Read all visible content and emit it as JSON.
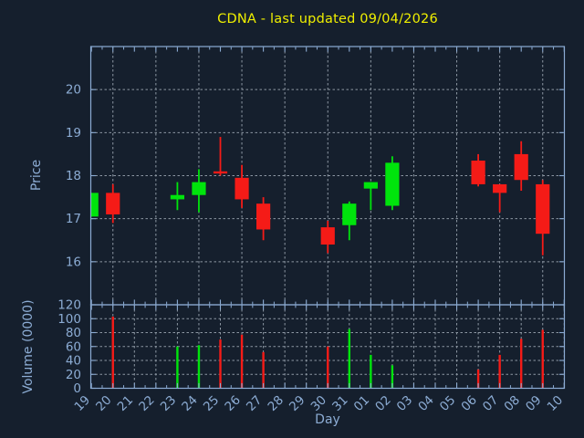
{
  "chart_data": {
    "type": "candlestick",
    "title": "CDNA - last updated 09/04/2026",
    "xlabel": "Day",
    "price_ylabel": "Price",
    "volume_ylabel": "Volume (0000)",
    "x_categories": [
      "19",
      "20",
      "21",
      "22",
      "23",
      "24",
      "25",
      "26",
      "27",
      "28",
      "29",
      "30",
      "31",
      "01",
      "02",
      "03",
      "04",
      "05",
      "06",
      "07",
      "08",
      "09",
      "10"
    ],
    "price_ylim": [
      15,
      21
    ],
    "price_yticks": [
      16,
      17,
      18,
      19,
      20
    ],
    "volume_ylim": [
      0,
      120
    ],
    "volume_yticks": [
      0,
      20,
      40,
      60,
      80,
      100,
      120
    ],
    "grid": {
      "on": true,
      "style": "dashed",
      "price_vertical_every_n_days": 2,
      "volume_vertical_every_n_days": 1
    },
    "legend": "none",
    "candles": [
      {
        "day": "19",
        "open": 17.05,
        "high": 17.6,
        "low": 17.05,
        "close": 17.6,
        "volume": 0,
        "direction": "up"
      },
      {
        "day": "20",
        "open": 17.6,
        "high": 17.8,
        "low": 16.9,
        "close": 17.1,
        "volume": 103,
        "direction": "down"
      },
      {
        "day": "23",
        "open": 17.45,
        "high": 17.85,
        "low": 17.2,
        "close": 17.55,
        "volume": 60,
        "direction": "up"
      },
      {
        "day": "24",
        "open": 17.55,
        "high": 18.15,
        "low": 17.15,
        "close": 17.85,
        "volume": 62,
        "direction": "up"
      },
      {
        "day": "25",
        "open": 18.1,
        "high": 18.9,
        "low": 18.0,
        "close": 18.05,
        "volume": 70,
        "direction": "down"
      },
      {
        "day": "26",
        "open": 17.95,
        "high": 18.25,
        "low": 17.25,
        "close": 17.45,
        "volume": 77,
        "direction": "down"
      },
      {
        "day": "27",
        "open": 17.35,
        "high": 17.5,
        "low": 16.5,
        "close": 16.75,
        "volume": 52,
        "direction": "down"
      },
      {
        "day": "30",
        "open": 16.8,
        "high": 16.95,
        "low": 16.2,
        "close": 16.4,
        "volume": 60,
        "direction": "down"
      },
      {
        "day": "31",
        "open": 16.85,
        "high": 17.4,
        "low": 16.5,
        "close": 17.35,
        "volume": 85,
        "direction": "up"
      },
      {
        "day": "01",
        "open": 17.7,
        "high": 17.85,
        "low": 17.2,
        "close": 17.85,
        "volume": 48,
        "direction": "up"
      },
      {
        "day": "02",
        "open": 17.3,
        "high": 18.45,
        "low": 17.2,
        "close": 18.3,
        "volume": 33,
        "direction": "up"
      },
      {
        "day": "06",
        "open": 18.35,
        "high": 18.5,
        "low": 17.75,
        "close": 17.8,
        "volume": 27,
        "direction": "down"
      },
      {
        "day": "07",
        "open": 17.8,
        "high": 17.8,
        "low": 17.15,
        "close": 17.6,
        "volume": 48,
        "direction": "down"
      },
      {
        "day": "08",
        "open": 18.5,
        "high": 18.8,
        "low": 17.65,
        "close": 17.9,
        "volume": 71,
        "direction": "down"
      },
      {
        "day": "09",
        "open": 17.8,
        "high": 17.9,
        "low": 16.15,
        "close": 16.65,
        "volume": 84,
        "direction": "down"
      }
    ],
    "colors": {
      "background": "#151f2d",
      "axis": "#8cacd4",
      "grid": "#9aa5b0",
      "title": "#efef00",
      "up": "#00e40c",
      "down": "#f51b17"
    }
  }
}
